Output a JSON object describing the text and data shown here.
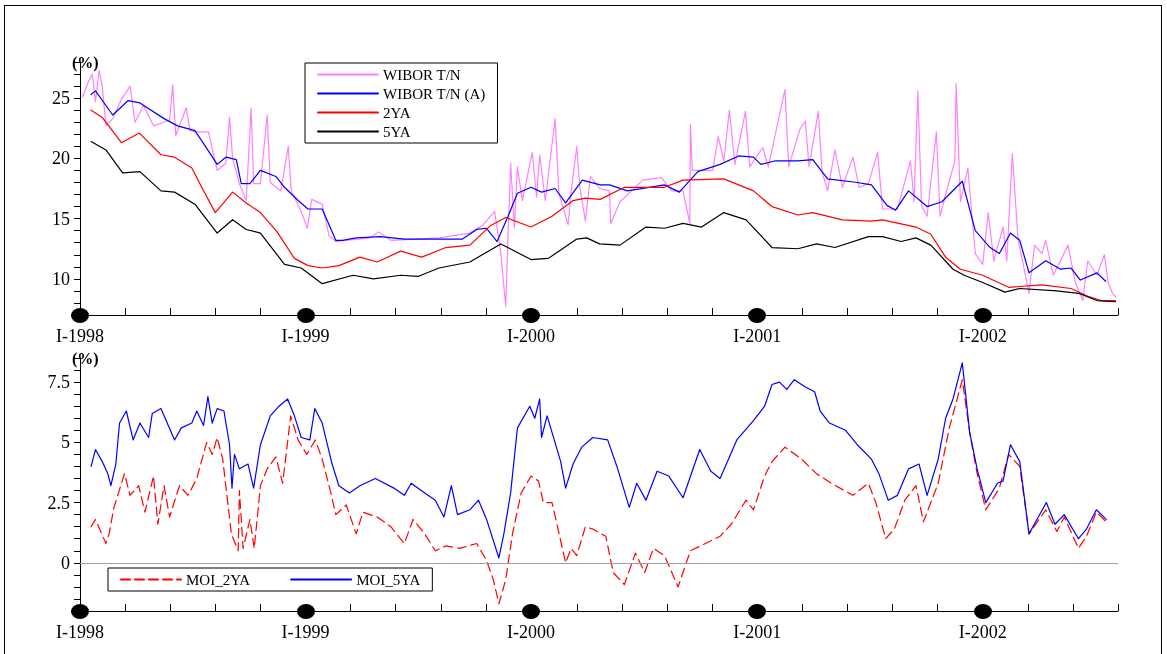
{
  "chart_data": [
    {
      "type": "line",
      "ylabel": "(%)",
      "legend": "top left",
      "grid": false,
      "marker": "none",
      "xlim": [
        "1998-01-01",
        "2002-08-08"
      ],
      "xticks": [
        {
          "value": "1998-01-01",
          "label": "I-1998"
        },
        {
          "value": "1998-03-15",
          "label": null
        },
        {
          "value": "1998-05-27",
          "label": null
        },
        {
          "value": "1998-08-08",
          "label": null
        },
        {
          "value": "1998-10-20",
          "label": null
        },
        {
          "value": "1999-01-01",
          "label": "I-1999"
        },
        {
          "value": "1999-03-15",
          "label": null
        },
        {
          "value": "1999-05-27",
          "label": null
        },
        {
          "value": "1999-08-08",
          "label": null
        },
        {
          "value": "1999-10-20",
          "label": null
        },
        {
          "value": "2000-01-01",
          "label": "I-2000"
        },
        {
          "value": "2000-03-15",
          "label": null
        },
        {
          "value": "2000-05-27",
          "label": null
        },
        {
          "value": "2000-08-08",
          "label": null
        },
        {
          "value": "2000-10-20",
          "label": null
        },
        {
          "value": "2001-01-01",
          "label": "I-2001"
        },
        {
          "value": "2001-03-15",
          "label": null
        },
        {
          "value": "2001-05-27",
          "label": null
        },
        {
          "value": "2001-08-08",
          "label": null
        },
        {
          "value": "2001-10-20",
          "label": null
        },
        {
          "value": "2002-01-01",
          "label": "I-2002"
        },
        {
          "value": "2002-03-15",
          "label": null
        },
        {
          "value": "2002-05-27",
          "label": null
        },
        {
          "value": "2002-08-08",
          "label": null
        }
      ],
      "ylim": [
        7,
        28
      ],
      "yticks": [
        {
          "value": 7,
          "label": null
        },
        {
          "value": 8,
          "label": null
        },
        {
          "value": 9,
          "label": null
        },
        10,
        {
          "value": 11,
          "label": null
        },
        {
          "value": 12,
          "label": null
        },
        {
          "value": 13,
          "label": null
        },
        {
          "value": 14,
          "label": null
        },
        15,
        {
          "value": 16,
          "label": null
        },
        {
          "value": 17,
          "label": null
        },
        {
          "value": 18,
          "label": null
        },
        {
          "value": 19,
          "label": null
        },
        20,
        {
          "value": 21,
          "label": null
        },
        {
          "value": 22,
          "label": null
        },
        {
          "value": 23,
          "label": null
        },
        {
          "value": 24,
          "label": null
        },
        25,
        {
          "value": 26,
          "label": null
        },
        {
          "value": 27,
          "label": null
        },
        {
          "value": 28,
          "label": null
        }
      ],
      "series": [
        {
          "name": "WIBOR T/N",
          "color": "#ff80ff",
          "x": [
            "1998-01-05",
            "1998-01-15",
            "1998-01-21",
            "1998-01-26",
            "1998-02-01",
            "1998-02-06",
            "1998-02-12",
            "1998-02-23",
            "1998-03-09",
            "1998-03-23",
            "1998-03-31",
            "1998-04-14",
            "1998-04-30",
            "1998-05-17",
            "1998-05-26",
            "1998-05-31",
            "1998-06-05",
            "1998-06-22",
            "1998-06-28",
            "1998-07-06",
            "1998-07-28",
            "1998-08-11",
            "1998-08-25",
            "1998-08-31",
            "1998-09-05",
            "1998-09-16",
            "1998-09-27",
            "1998-10-05",
            "1998-10-09",
            "1998-10-20",
            "1998-10-31",
            "1998-11-05",
            "1998-11-22",
            "1998-12-04",
            "1998-12-09",
            "1998-12-25",
            "1999-01-04",
            "1999-01-11",
            "1999-01-28",
            "1999-02-08",
            "1999-02-19",
            "1999-04-15",
            "1999-04-29",
            "1999-05-19",
            "1999-08-05",
            "1999-09-24",
            "1999-10-16",
            "1999-11-03",
            "1999-11-13",
            "1999-11-21",
            "1999-11-25",
            "1999-11-29",
            "1999-12-05",
            "1999-12-10",
            "1999-12-18",
            "2000-01-03",
            "2000-01-10",
            "2000-01-15",
            "2000-01-24",
            "2000-02-09",
            "2000-02-15",
            "2000-03-01",
            "2000-03-06",
            "2000-03-15",
            "2000-03-20",
            "2000-03-29",
            "2000-04-06",
            "2000-04-21",
            "2000-05-07",
            "2000-05-09",
            "2000-05-24",
            "2000-06-30",
            "2000-07-30",
            "2000-08-16",
            "2000-09-03",
            "2000-09-14",
            "2000-09-15",
            "2000-09-18",
            "2000-10-21",
            "2000-10-30",
            "2000-11-08",
            "2000-11-17",
            "2000-11-26",
            "2000-12-13",
            "2000-12-20",
            "2001-01-10",
            "2001-01-19",
            "2001-02-15",
            "2001-02-21",
            "2001-03-11",
            "2001-03-20",
            "2001-03-26",
            "2001-04-10",
            "2001-04-16",
            "2001-04-25",
            "2001-05-07",
            "2001-05-19",
            "2001-06-05",
            "2001-06-15",
            "2001-06-30",
            "2001-07-15",
            "2001-07-23",
            "2001-08-16",
            "2001-09-06",
            "2001-09-12",
            "2001-09-18",
            "2001-09-24",
            "2001-10-03",
            "2001-10-18",
            "2001-10-24",
            "2001-11-02",
            "2001-11-17",
            "2001-11-19",
            "2001-11-26",
            "2001-12-08",
            "2001-12-20",
            "2002-01-01",
            "2002-01-10",
            "2002-01-19",
            "2002-02-03",
            "2002-02-09",
            "2002-02-18",
            "2002-02-27",
            "2002-03-17",
            "2002-03-26",
            "2002-04-07",
            "2002-04-13",
            "2002-04-25",
            "2002-05-07",
            "2002-05-19",
            "2002-05-31",
            "2002-06-12",
            "2002-06-20",
            "2002-07-05",
            "2002-07-17",
            "2002-07-23",
            "2002-07-30",
            "2002-08-04"
          ],
          "values": [
            25.1,
            26.4,
            27.0,
            24.7,
            27.3,
            26.0,
            22.7,
            23.3,
            24.9,
            26.0,
            23.0,
            24.4,
            22.7,
            23.0,
            23.2,
            26.1,
            21.9,
            24.2,
            22.3,
            22.2,
            22.2,
            19.0,
            19.6,
            23.4,
            20.0,
            17.9,
            16.5,
            24.2,
            17.9,
            17.9,
            23.6,
            18.0,
            17.3,
            21.0,
            17.3,
            15.6,
            14.2,
            16.6,
            16.2,
            13.6,
            13.1,
            13.4,
            13.9,
            13.2,
            13.4,
            13.8,
            14.5,
            15.6,
            12.2,
            7.7,
            13.9,
            19.6,
            14.2,
            19.3,
            16.5,
            20.5,
            16.8,
            20.3,
            16.5,
            23.3,
            17.1,
            14.5,
            17.3,
            21.0,
            17.6,
            14.8,
            18.5,
            17.5,
            17.3,
            14.6,
            16.4,
            18.2,
            18.4,
            17.3,
            17.3,
            14.6,
            22.8,
            19.0,
            19.0,
            21.8,
            19.8,
            24.0,
            19.5,
            23.9,
            19.3,
            20.9,
            19.3,
            25.7,
            19.3,
            22.4,
            23.1,
            19.3,
            23.9,
            18.9,
            17.3,
            20.7,
            17.6,
            20.1,
            17.6,
            17.9,
            20.5,
            15.8,
            15.8,
            19.8,
            16.4,
            25.6,
            16.1,
            15.2,
            22.2,
            15.2,
            17.0,
            19.8,
            26.2,
            16.4,
            19.2,
            12.1,
            11.2,
            15.5,
            11.5,
            14.3,
            11.5,
            20.4,
            13.4,
            8.8,
            12.8,
            12.1,
            13.2,
            10.3,
            11.5,
            12.8,
            9.7,
            8.2,
            11.5,
            10.3,
            12.0,
            9.7,
            8.8,
            8.5
          ]
        },
        {
          "name": "WIBOR T/N (A)",
          "color": "#0000ff",
          "x": [
            "1998-01-19",
            "1998-01-26",
            "1998-02-23",
            "1998-03-20",
            "1998-04-08",
            "1998-05-17",
            "1998-06-08",
            "1998-07-06",
            "1998-07-23",
            "1998-08-11",
            "1998-08-25",
            "1998-09-11",
            "1998-09-19",
            "1998-10-03",
            "1998-10-20",
            "1998-11-14",
            "1998-11-28",
            "1998-12-20",
            "1999-01-05",
            "1999-01-28",
            "1999-02-19",
            "1999-03-02",
            "1999-03-24",
            "1999-05-02",
            "1999-06-10",
            "1999-08-05",
            "1999-09-12",
            "1999-10-05",
            "1999-10-21",
            "1999-11-07",
            "1999-11-24",
            "1999-12-10",
            "2000-01-01",
            "2000-01-18",
            "2000-02-09",
            "2000-02-26",
            "2000-03-24",
            "2000-04-22",
            "2000-05-07",
            "2000-06-05",
            "2000-08-04",
            "2000-08-28",
            "2000-09-27",
            "2000-11-02",
            "2000-12-02",
            "2000-12-26",
            "2001-01-07",
            "2001-01-31",
            "2001-03-08",
            "2001-04-01",
            "2001-04-25",
            "2001-06-12",
            "2001-07-05",
            "2001-07-30",
            "2001-08-13",
            "2001-09-03",
            "2001-10-03",
            "2001-10-27",
            "2001-11-29",
            "2001-12-20",
            "2002-01-13",
            "2002-01-28",
            "2002-02-15",
            "2002-03-02",
            "2002-03-17",
            "2002-04-13",
            "2002-05-07",
            "2002-05-24",
            "2002-06-08",
            "2002-07-05",
            "2002-07-19"
          ],
          "values": [
            25.3,
            25.6,
            23.6,
            24.8,
            24.6,
            23.3,
            22.7,
            22.3,
            21.0,
            19.5,
            20.1,
            19.9,
            17.9,
            17.9,
            19.0,
            18.5,
            17.6,
            16.5,
            15.8,
            15.8,
            13.2,
            13.2,
            13.4,
            13.5,
            13.3,
            13.3,
            13.3,
            14.1,
            14.2,
            13.1,
            15.1,
            17.1,
            17.6,
            17.2,
            17.5,
            16.3,
            18.2,
            17.8,
            17.8,
            17.3,
            17.8,
            17.2,
            18.9,
            19.5,
            20.2,
            20.1,
            19.5,
            19.8,
            19.8,
            19.9,
            18.3,
            18.0,
            17.8,
            16.1,
            15.7,
            17.3,
            16.0,
            16.4,
            18.1,
            14.0,
            12.6,
            12.1,
            13.8,
            13.2,
            10.5,
            11.5,
            10.8,
            10.9,
            9.9,
            10.5,
            9.8
          ]
        },
        {
          "name": "2YA",
          "color": "#ff0000",
          "x": [
            "1998-01-19",
            "1998-02-06",
            "1998-03-09",
            "1998-04-07",
            "1998-05-12",
            "1998-06-03",
            "1998-07-01",
            "1998-07-17",
            "1998-08-08",
            "1998-09-05",
            "1998-09-27",
            "1998-10-20",
            "1998-11-16",
            "1998-12-14",
            "1999-01-05",
            "1999-01-28",
            "1999-02-24",
            "1999-03-30",
            "1999-04-27",
            "1999-06-04",
            "1999-07-08",
            "1999-08-16",
            "1999-09-24",
            "1999-10-27",
            "1999-11-21",
            "2000-01-01",
            "2000-02-04",
            "2000-03-09",
            "2000-03-29",
            "2000-04-22",
            "2000-05-31",
            "2000-08-04",
            "2000-09-03",
            "2000-11-08",
            "2000-12-26",
            "2001-01-25",
            "2001-03-08",
            "2001-04-01",
            "2001-05-19",
            "2001-07-05",
            "2001-07-23",
            "2001-09-15",
            "2001-10-09",
            "2001-11-02",
            "2001-11-26",
            "2002-01-01",
            "2002-02-12",
            "2002-04-07",
            "2002-05-24",
            "2002-06-23",
            "2002-07-12",
            "2002-08-04"
          ],
          "values": [
            24.0,
            23.4,
            21.3,
            22.1,
            20.3,
            20.1,
            19.2,
            17.6,
            15.5,
            17.2,
            16.3,
            15.5,
            13.9,
            11.7,
            11.1,
            10.9,
            11.1,
            11.8,
            11.4,
            12.3,
            11.8,
            12.6,
            12.8,
            14.4,
            15.1,
            14.3,
            15.2,
            16.5,
            16.7,
            16.6,
            17.6,
            17.6,
            18.2,
            18.3,
            17.3,
            16.0,
            15.3,
            15.5,
            14.9,
            14.8,
            14.9,
            14.3,
            13.7,
            11.8,
            10.8,
            10.3,
            9.3,
            9.5,
            9.2,
            8.5,
            8.2,
            8.2
          ]
        },
        {
          "name": "5YA",
          "color": "#000000",
          "x": [
            "1998-01-19",
            "1998-02-12",
            "1998-03-11",
            "1998-04-08",
            "1998-05-12",
            "1998-06-03",
            "1998-07-06",
            "1998-08-11",
            "1998-09-05",
            "1998-09-27",
            "1998-10-20",
            "1998-11-28",
            "1998-12-25",
            "1999-01-28",
            "1999-03-19",
            "1999-04-21",
            "1999-06-04",
            "1999-07-02",
            "1999-08-05",
            "1999-09-24",
            "1999-11-13",
            "2000-01-01",
            "2000-01-29",
            "2000-03-15",
            "2000-03-31",
            "2000-04-21",
            "2000-05-24",
            "2000-07-05",
            "2000-08-04",
            "2000-09-03",
            "2000-10-03",
            "2000-11-08",
            "2000-12-14",
            "2001-01-25",
            "2001-03-08",
            "2001-04-07",
            "2001-05-07",
            "2001-06-30",
            "2001-07-23",
            "2001-08-22",
            "2001-09-15",
            "2001-10-09",
            "2001-11-14",
            "2001-12-02",
            "2002-01-01",
            "2002-02-06",
            "2002-03-02",
            "2002-05-01",
            "2002-06-05",
            "2002-07-05",
            "2002-08-04"
          ],
          "values": [
            21.4,
            20.7,
            18.8,
            18.9,
            17.3,
            17.2,
            16.2,
            13.8,
            14.9,
            14.1,
            13.8,
            11.2,
            10.9,
            9.6,
            10.3,
            10.0,
            10.3,
            10.2,
            10.9,
            11.4,
            12.9,
            11.6,
            11.7,
            13.3,
            13.4,
            12.9,
            12.8,
            14.3,
            14.2,
            14.6,
            14.3,
            15.5,
            14.9,
            12.6,
            12.5,
            12.9,
            12.6,
            13.5,
            13.5,
            13.1,
            13.4,
            12.8,
            10.8,
            10.3,
            9.7,
            8.9,
            9.2,
            9.0,
            8.8,
            8.2,
            8.1
          ]
        }
      ]
    },
    {
      "type": "line",
      "ylabel": "(%)",
      "legend": "bottom left",
      "grid": false,
      "marker": "none",
      "xlim": [
        "1998-01-01",
        "2002-08-08"
      ],
      "xticks": [
        {
          "value": "1998-01-01",
          "label": "I-1998"
        },
        {
          "value": "1998-03-15",
          "label": null
        },
        {
          "value": "1998-05-27",
          "label": null
        },
        {
          "value": "1998-08-08",
          "label": null
        },
        {
          "value": "1998-10-20",
          "label": null
        },
        {
          "value": "1999-01-01",
          "label": "I-1999"
        },
        {
          "value": "1999-03-15",
          "label": null
        },
        {
          "value": "1999-05-27",
          "label": null
        },
        {
          "value": "1999-08-08",
          "label": null
        },
        {
          "value": "1999-10-20",
          "label": null
        },
        {
          "value": "2000-01-01",
          "label": "I-2000"
        },
        {
          "value": "2000-03-15",
          "label": null
        },
        {
          "value": "2000-05-27",
          "label": null
        },
        {
          "value": "2000-08-08",
          "label": null
        },
        {
          "value": "2000-10-20",
          "label": null
        },
        {
          "value": "2001-01-01",
          "label": "I-2001"
        },
        {
          "value": "2001-03-15",
          "label": null
        },
        {
          "value": "2001-05-27",
          "label": null
        },
        {
          "value": "2001-08-08",
          "label": null
        },
        {
          "value": "2001-10-20",
          "label": null
        },
        {
          "value": "2002-01-01",
          "label": "I-2002"
        },
        {
          "value": "2002-03-15",
          "label": null
        },
        {
          "value": "2002-05-27",
          "label": null
        },
        {
          "value": "2002-08-08",
          "label": null
        }
      ],
      "ylim": [
        -2,
        8.5
      ],
      "yticks": [
        {
          "value": -2,
          "label": null
        },
        {
          "value": -1.5,
          "label": null
        },
        {
          "value": -1,
          "label": null
        },
        {
          "value": -0.5,
          "label": null
        },
        0,
        {
          "value": 0.5,
          "label": null
        },
        {
          "value": 1,
          "label": null
        },
        {
          "value": 1.5,
          "label": null
        },
        {
          "value": 2,
          "label": null
        },
        2.5,
        {
          "value": 3,
          "label": null
        },
        {
          "value": 3.5,
          "label": null
        },
        {
          "value": 4,
          "label": null
        },
        {
          "value": 4.5,
          "label": null
        },
        5,
        {
          "value": 5.5,
          "label": null
        },
        {
          "value": 6,
          "label": null
        },
        {
          "value": 6.5,
          "label": null
        },
        {
          "value": 7,
          "label": null
        },
        7.5,
        {
          "value": 8,
          "label": null
        },
        {
          "value": 8.5,
          "label": null
        }
      ],
      "ref_lines": [
        {
          "axis": "y",
          "value": 0,
          "color": "#a0a0a0"
        }
      ],
      "series": [
        {
          "name": "MOI_2YA",
          "color": "#ff0000",
          "line_style": "dashed",
          "x": [
            "1998-01-19",
            "1998-01-26",
            "1998-02-12",
            "1998-02-17",
            "1998-02-25",
            "1998-03-14",
            "1998-03-23",
            "1998-04-06",
            "1998-04-16",
            "1998-04-30",
            "1998-05-07",
            "1998-05-17",
            "1998-05-26",
            "1998-06-11",
            "1998-06-25",
            "1998-07-09",
            "1998-07-25",
            "1998-08-03",
            "1998-08-11",
            "1998-08-20",
            "1998-09-03",
            "1998-09-14",
            "1998-09-16",
            "1998-09-22",
            "1998-10-03",
            "1998-10-10",
            "1998-10-20",
            "1998-10-31",
            "1998-11-14",
            "1998-11-25",
            "1998-12-08",
            "1998-12-20",
            "1999-01-03",
            "1999-01-17",
            "1999-01-28",
            "1999-02-11",
            "1999-02-19",
            "1999-03-08",
            "1999-03-24",
            "1999-04-04",
            "1999-04-27",
            "1999-05-19",
            "1999-06-10",
            "1999-06-24",
            "1999-07-13",
            "1999-07-30",
            "1999-08-16",
            "1999-09-07",
            "1999-10-05",
            "1999-10-21",
            "1999-11-01",
            "1999-11-10",
            "1999-11-21",
            "1999-12-02",
            "1999-12-16",
            "2000-01-01",
            "2000-01-13",
            "2000-01-21",
            "2000-02-04",
            "2000-02-26",
            "2000-03-06",
            "2000-03-15",
            "2000-03-29",
            "2000-04-10",
            "2000-05-01",
            "2000-05-13",
            "2000-05-31",
            "2000-06-18",
            "2000-07-03",
            "2000-07-17",
            "2000-08-04",
            "2000-08-26",
            "2000-09-15",
            "2000-10-09",
            "2000-11-02",
            "2000-11-20",
            "2000-12-14",
            "2000-12-26",
            "2001-01-13",
            "2001-01-25",
            "2001-02-15",
            "2001-03-14",
            "2001-04-07",
            "2001-05-01",
            "2001-06-05",
            "2001-06-30",
            "2001-07-12",
            "2001-07-28",
            "2001-08-11",
            "2001-08-28",
            "2001-09-15",
            "2001-09-27",
            "2001-10-21",
            "2001-11-08",
            "2001-11-29",
            "2001-12-11",
            "2001-12-23",
            "2002-01-06",
            "2002-01-28",
            "2002-02-12",
            "2002-03-02",
            "2002-03-17",
            "2002-04-13",
            "2002-05-01",
            "2002-05-13",
            "2002-06-05",
            "2002-06-18",
            "2002-07-04",
            "2002-07-20"
          ],
          "values": [
            1.5,
            1.8,
            0.8,
            1.2,
            2.3,
            3.7,
            2.8,
            3.2,
            2.1,
            3.6,
            1.6,
            3.2,
            1.9,
            3.2,
            2.8,
            3.5,
            5.0,
            4.5,
            5.2,
            4.3,
            1.2,
            0.5,
            3.0,
            0.6,
            1.8,
            0.6,
            3.2,
            3.9,
            4.4,
            3.3,
            6.1,
            5.1,
            4.5,
            5.1,
            4.3,
            2.9,
            2.0,
            2.4,
            1.2,
            2.1,
            1.9,
            1.5,
            0.8,
            1.8,
            1.2,
            0.5,
            0.7,
            0.6,
            0.8,
            0.1,
            -0.7,
            -1.7,
            -0.7,
            1.2,
            2.9,
            3.6,
            3.4,
            2.5,
            2.5,
            0.0,
            0.6,
            0.3,
            1.5,
            1.4,
            1.1,
            -0.4,
            -0.9,
            0.4,
            -0.4,
            0.6,
            0.3,
            -1.0,
            0.5,
            0.8,
            1.1,
            1.6,
            2.6,
            2.2,
            3.6,
            4.2,
            4.8,
            4.3,
            3.7,
            3.3,
            2.8,
            3.3,
            2.5,
            1.0,
            1.4,
            2.6,
            3.2,
            1.7,
            3.3,
            5.6,
            7.6,
            5.4,
            3.7,
            2.2,
            3.1,
            4.5,
            4.0,
            1.2,
            2.2,
            1.3,
            1.9,
            0.6,
            1.1,
            2.1,
            1.7
          ]
        },
        {
          "name": "MOI_5YA",
          "color": "#0000ff",
          "line_style": "solid",
          "x": [
            "1998-01-19",
            "1998-01-26",
            "1998-02-06",
            "1998-02-15",
            "1998-02-20",
            "1998-02-28",
            "1998-03-06",
            "1998-03-17",
            "1998-03-28",
            "1998-04-08",
            "1998-04-22",
            "1998-04-28",
            "1998-05-12",
            "1998-06-03",
            "1998-06-14",
            "1998-07-01",
            "1998-07-09",
            "1998-07-20",
            "1998-07-27",
            "1998-08-03",
            "1998-08-11",
            "1998-08-22",
            "1998-08-31",
            "1998-09-04",
            "1998-09-08",
            "1998-09-16",
            "1998-09-30",
            "1998-10-09",
            "1998-10-20",
            "1998-11-05",
            "1998-11-19",
            "1998-12-03",
            "1998-12-14",
            "1998-12-25",
            "1999-01-08",
            "1999-01-16",
            "1999-01-28",
            "1999-02-13",
            "1999-02-24",
            "1999-03-13",
            "1999-03-30",
            "1999-04-24",
            "1999-05-24",
            "1999-06-10",
            "1999-06-21",
            "1999-07-13",
            "1999-07-30",
            "1999-08-13",
            "1999-08-25",
            "1999-09-04",
            "1999-09-24",
            "1999-10-08",
            "1999-10-21",
            "1999-11-10",
            "1999-11-18",
            "1999-11-29",
            "1999-12-10",
            "1999-12-30",
            "2000-01-07",
            "2000-01-15",
            "2000-01-18",
            "2000-01-27",
            "2000-02-18",
            "2000-02-26",
            "2000-03-09",
            "2000-03-23",
            "2000-04-10",
            "2000-05-04",
            "2000-05-19",
            "2000-06-08",
            "2000-06-20",
            "2000-07-05",
            "2000-07-23",
            "2000-08-11",
            "2000-09-03",
            "2000-09-30",
            "2000-10-18",
            "2000-11-02",
            "2000-11-29",
            "2000-12-26",
            "2001-01-13",
            "2001-01-25",
            "2001-02-06",
            "2001-02-18",
            "2001-03-02",
            "2001-03-20",
            "2001-04-04",
            "2001-04-13",
            "2001-04-28",
            "2001-05-24",
            "2001-06-12",
            "2001-07-05",
            "2001-07-17",
            "2001-08-01",
            "2001-08-16",
            "2001-09-03",
            "2001-09-20",
            "2001-10-03",
            "2001-10-21",
            "2001-11-02",
            "2001-11-14",
            "2001-11-29",
            "2001-12-11",
            "2001-12-23",
            "2002-01-06",
            "2002-01-25",
            "2002-02-03",
            "2002-02-15",
            "2002-03-02",
            "2002-03-17",
            "2002-04-01",
            "2002-04-14",
            "2002-04-28",
            "2002-05-13",
            "2002-06-05",
            "2002-06-18",
            "2002-07-04",
            "2002-07-20"
          ],
          "values": [
            4.0,
            4.7,
            4.2,
            3.7,
            3.2,
            4.1,
            5.8,
            6.3,
            5.1,
            5.8,
            5.2,
            6.2,
            6.4,
            5.1,
            5.6,
            5.8,
            6.3,
            5.7,
            6.9,
            5.8,
            6.4,
            6.3,
            4.9,
            3.1,
            4.5,
            3.9,
            4.1,
            3.1,
            4.9,
            6.1,
            6.5,
            6.8,
            6.1,
            5.2,
            5.1,
            6.4,
            5.8,
            4.1,
            3.2,
            2.9,
            3.2,
            3.5,
            3.1,
            2.8,
            3.3,
            2.9,
            2.6,
            1.9,
            3.2,
            2.0,
            2.2,
            2.6,
            1.8,
            0.2,
            1.2,
            2.9,
            5.6,
            6.5,
            6.0,
            6.8,
            5.2,
            6.1,
            4.2,
            3.1,
            4.1,
            4.8,
            5.2,
            5.1,
            4.0,
            2.3,
            3.3,
            2.6,
            3.8,
            3.6,
            2.7,
            4.7,
            3.8,
            3.5,
            5.1,
            5.9,
            6.5,
            7.4,
            7.5,
            7.2,
            7.6,
            7.3,
            7.1,
            6.3,
            5.8,
            5.5,
            4.9,
            4.3,
            3.7,
            2.6,
            2.8,
            3.9,
            4.1,
            2.8,
            4.3,
            6.0,
            6.8,
            8.3,
            5.4,
            3.9,
            2.5,
            3.3,
            3.4,
            4.9,
            4.2,
            1.2,
            1.9,
            2.5,
            1.6,
            2.0,
            1.0,
            1.4,
            2.2,
            1.8
          ]
        }
      ]
    }
  ]
}
